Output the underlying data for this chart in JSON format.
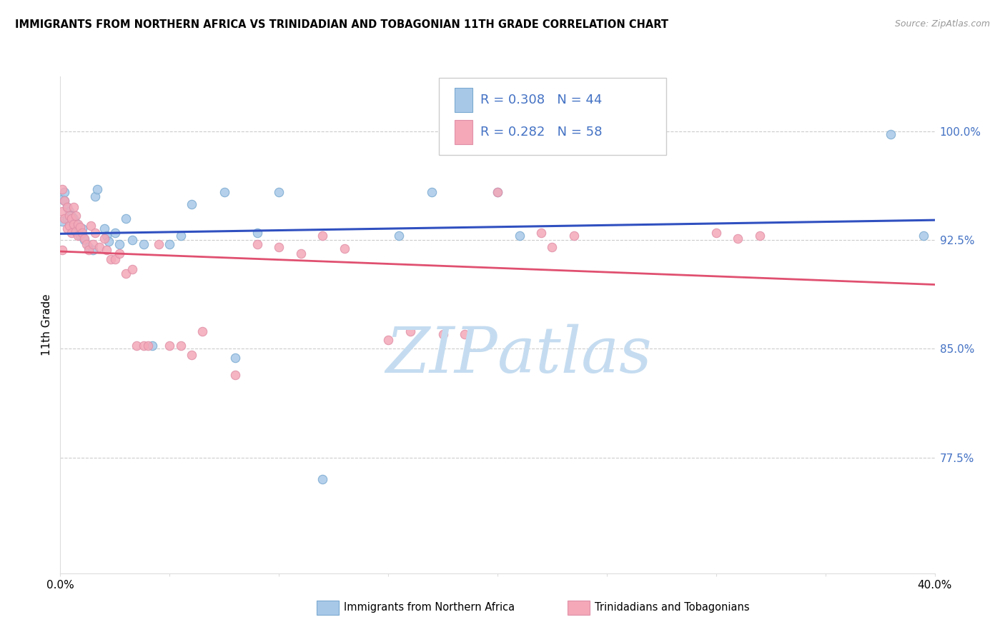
{
  "title": "IMMIGRANTS FROM NORTHERN AFRICA VS TRINIDADIAN AND TOBAGONIAN 11TH GRADE CORRELATION CHART",
  "source": "Source: ZipAtlas.com",
  "ylabel": "11th Grade",
  "y_tick_labels": [
    "77.5%",
    "85.0%",
    "92.5%",
    "100.0%"
  ],
  "y_tick_values": [
    0.775,
    0.85,
    0.925,
    1.0
  ],
  "x_min": 0.0,
  "x_max": 0.4,
  "y_min": 0.695,
  "y_max": 1.038,
  "legend_R1": "0.308",
  "legend_N1": "44",
  "legend_R2": "0.282",
  "legend_N2": "58",
  "color_blue": "#a8c8e8",
  "color_pink": "#f4a8b8",
  "color_blue_line": "#3050c0",
  "color_pink_line": "#e05070",
  "color_blue_text": "#4472c4",
  "color_axis_text": "#4472c4",
  "color_watermark": "#cce0f5",
  "color_grid": "#cccccc",
  "blue_x": [
    0.001,
    0.001,
    0.002,
    0.002,
    0.003,
    0.003,
    0.004,
    0.004,
    0.005,
    0.005,
    0.006,
    0.006,
    0.007,
    0.008,
    0.009,
    0.01,
    0.011,
    0.013,
    0.015,
    0.016,
    0.017,
    0.02,
    0.021,
    0.022,
    0.025,
    0.027,
    0.03,
    0.033,
    0.038,
    0.042,
    0.05,
    0.055,
    0.06,
    0.075,
    0.08,
    0.09,
    0.1,
    0.12,
    0.155,
    0.17,
    0.2,
    0.21,
    0.38,
    0.395
  ],
  "blue_y": [
    0.938,
    0.953,
    0.958,
    0.952,
    0.948,
    0.94,
    0.945,
    0.938,
    0.942,
    0.936,
    0.94,
    0.933,
    0.937,
    0.931,
    0.928,
    0.933,
    0.925,
    0.92,
    0.918,
    0.955,
    0.96,
    0.933,
    0.928,
    0.924,
    0.93,
    0.922,
    0.94,
    0.925,
    0.922,
    0.852,
    0.922,
    0.928,
    0.95,
    0.958,
    0.844,
    0.93,
    0.958,
    0.76,
    0.928,
    0.958,
    0.958,
    0.928,
    0.998,
    0.928
  ],
  "pink_x": [
    0.001,
    0.001,
    0.001,
    0.002,
    0.002,
    0.003,
    0.003,
    0.004,
    0.004,
    0.005,
    0.005,
    0.006,
    0.006,
    0.007,
    0.007,
    0.008,
    0.008,
    0.009,
    0.01,
    0.011,
    0.012,
    0.013,
    0.014,
    0.015,
    0.016,
    0.018,
    0.02,
    0.021,
    0.023,
    0.025,
    0.027,
    0.03,
    0.033,
    0.035,
    0.038,
    0.04,
    0.045,
    0.05,
    0.055,
    0.06,
    0.065,
    0.08,
    0.09,
    0.1,
    0.11,
    0.12,
    0.13,
    0.15,
    0.16,
    0.175,
    0.185,
    0.2,
    0.22,
    0.225,
    0.235,
    0.3,
    0.31,
    0.32
  ],
  "pink_y": [
    0.96,
    0.945,
    0.918,
    0.952,
    0.94,
    0.948,
    0.933,
    0.942,
    0.935,
    0.94,
    0.93,
    0.948,
    0.936,
    0.942,
    0.931,
    0.936,
    0.928,
    0.934,
    0.93,
    0.926,
    0.922,
    0.918,
    0.935,
    0.922,
    0.93,
    0.92,
    0.926,
    0.918,
    0.912,
    0.912,
    0.916,
    0.902,
    0.905,
    0.852,
    0.852,
    0.852,
    0.922,
    0.852,
    0.852,
    0.846,
    0.862,
    0.832,
    0.922,
    0.92,
    0.916,
    0.928,
    0.919,
    0.856,
    0.862,
    0.86,
    0.86,
    0.958,
    0.93,
    0.92,
    0.928,
    0.93,
    0.926,
    0.928
  ]
}
